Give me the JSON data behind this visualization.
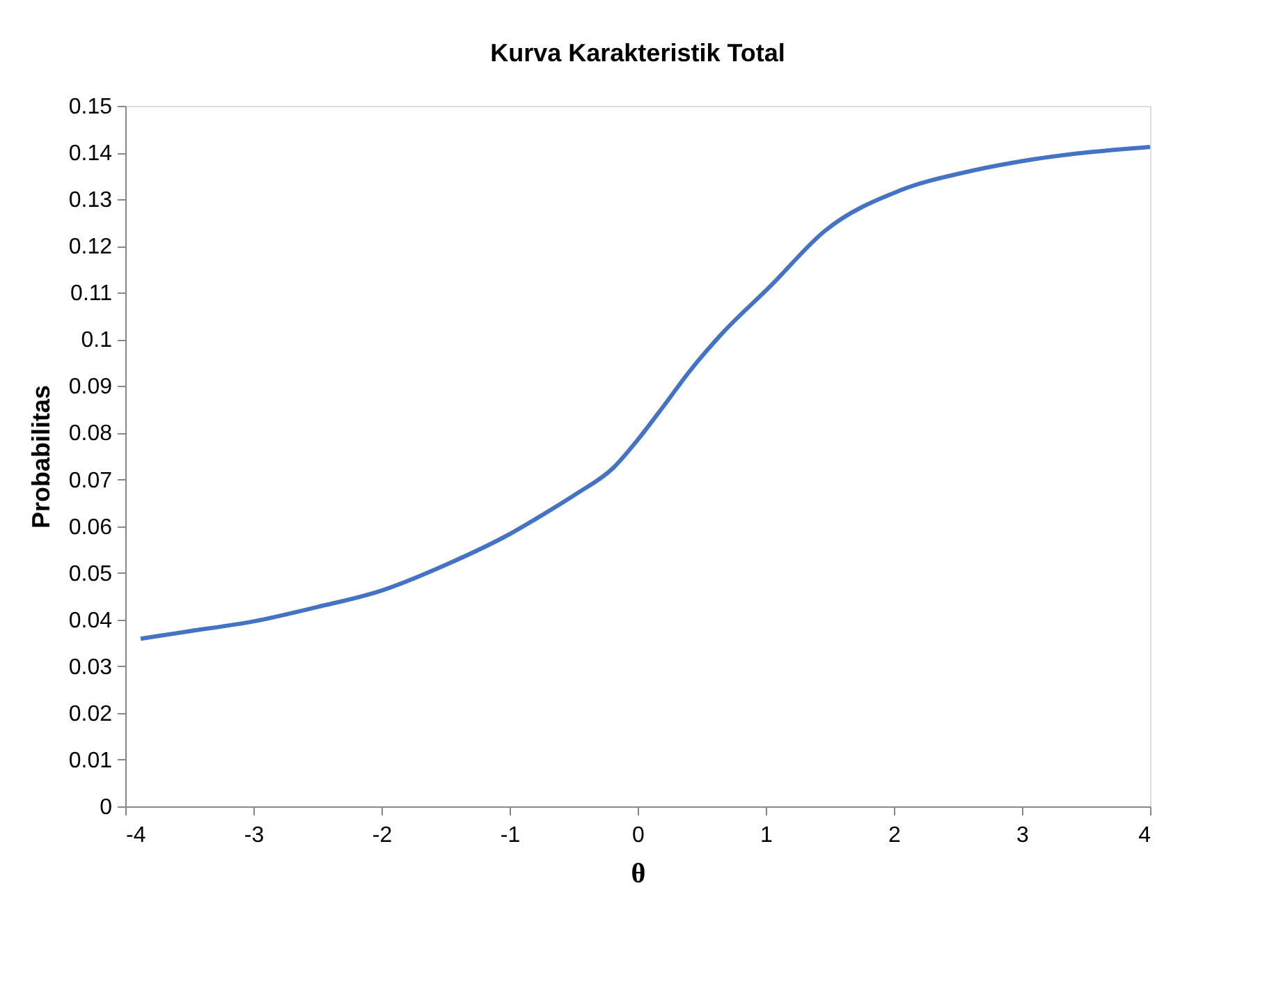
{
  "chart_data": {
    "type": "line",
    "title": "Kurva Karakteristik Total",
    "xlabel": "θ",
    "ylabel": "Probabilitas",
    "x": [
      -3.88,
      -3.5,
      -3.0,
      -2.5,
      -2.0,
      -1.5,
      -1.0,
      -0.75,
      -0.48,
      -0.19,
      0.0,
      0.21,
      0.4,
      0.65,
      1.04,
      1.46,
      2.04,
      2.56,
      3.03,
      4.0
    ],
    "series": [
      {
        "color": "#4472c4",
        "values": [
          0.0359,
          0.0375,
          0.0396,
          0.0427,
          0.0462,
          0.0517,
          0.0583,
          0.0623,
          0.0669,
          0.0725,
          0.0785,
          0.086,
          0.093,
          0.101,
          0.1115,
          0.1232,
          0.1318,
          0.1358,
          0.1383,
          0.1412
        ]
      }
    ],
    "xlim": [
      -4,
      4
    ],
    "xticks": [
      -4,
      -3,
      -2,
      -1,
      0,
      1,
      2,
      3,
      4
    ],
    "ylim": [
      0,
      0.15
    ],
    "yticks": [
      0,
      0.01,
      0.02,
      0.03,
      0.04,
      0.05,
      0.06,
      0.07,
      0.08,
      0.09,
      0.1,
      0.11,
      0.12,
      0.13,
      0.14,
      0.15
    ],
    "grid": false,
    "legend": false,
    "marker": "none",
    "line_style": "solid"
  }
}
